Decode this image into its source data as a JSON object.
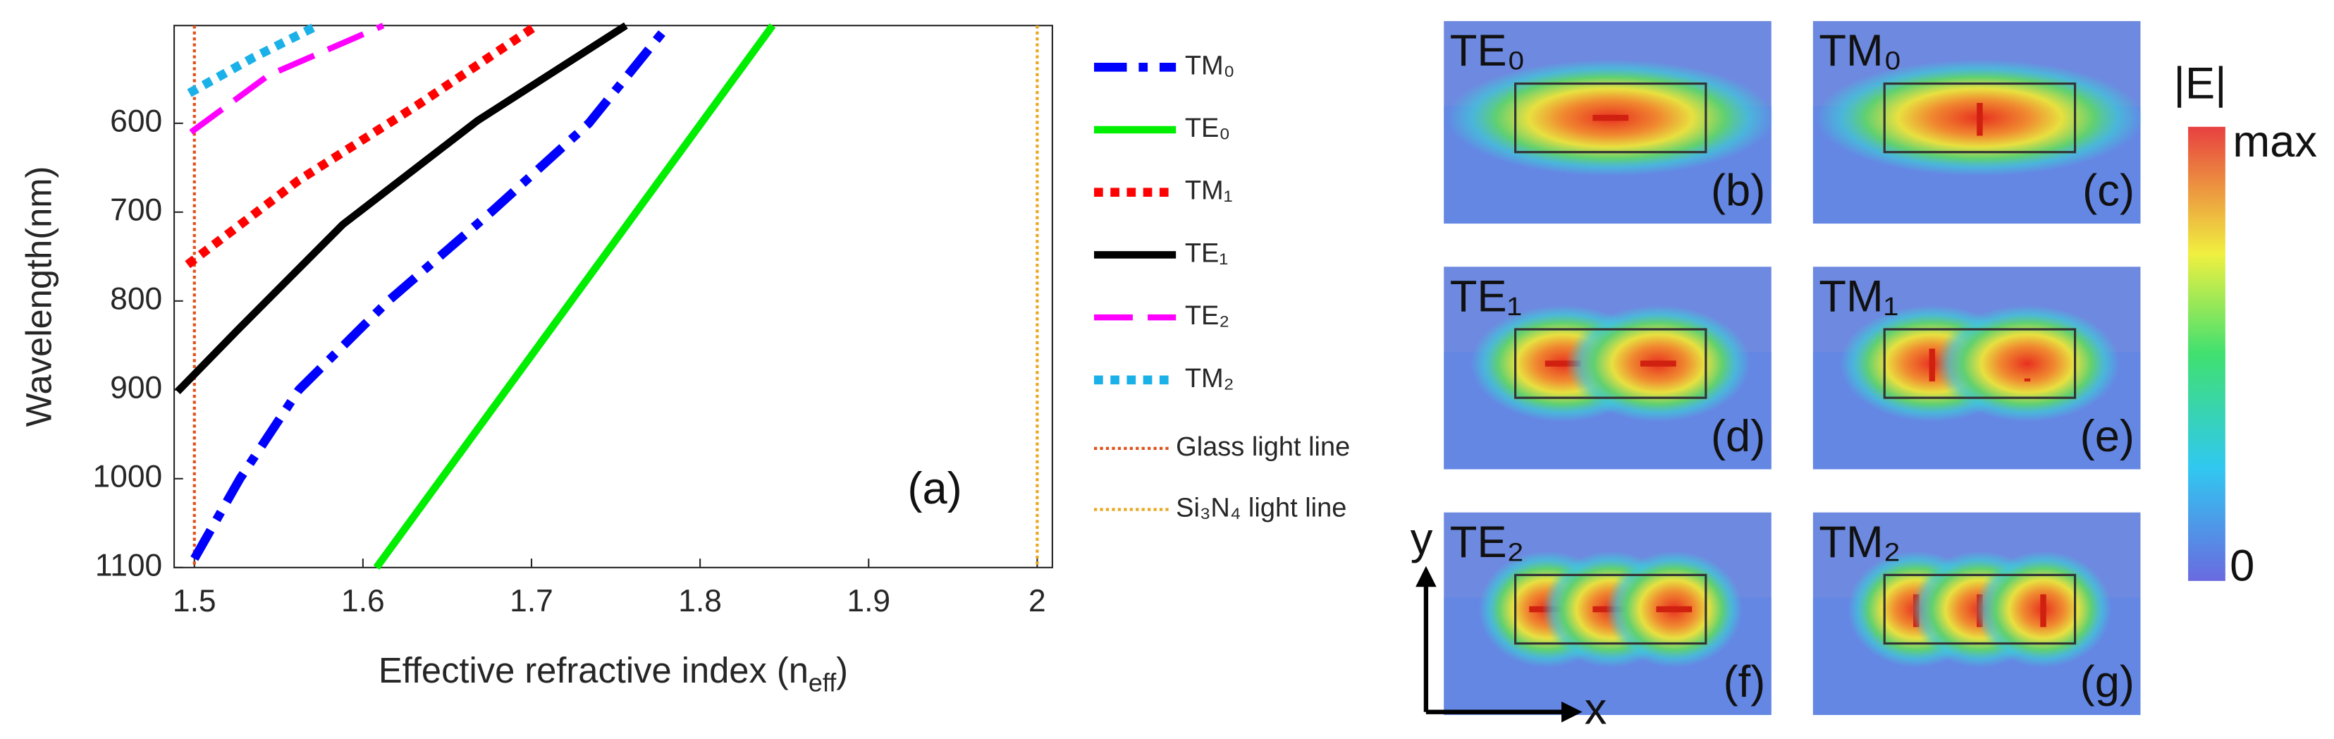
{
  "chart_data": {
    "type": "line",
    "xlabel": "Effective refractive index (n",
    "xlabel_sub": "eff",
    "xlabel_end": ")",
    "ylabel": "Wavelength(nm)",
    "annotation": "(a)",
    "xlim": [
      1.488,
      2.009
    ],
    "ylim": [
      1100,
      490
    ],
    "xticks": [
      1.5,
      1.6,
      1.7,
      1.8,
      1.9,
      2
    ],
    "yticks": [
      600,
      700,
      800,
      900,
      1000,
      1100
    ],
    "series": [
      {
        "name": "TM₀",
        "color": "#0000ff",
        "dash": "dashdot",
        "x": [
          1.5,
          1.527,
          1.562,
          1.615,
          1.676,
          1.734,
          1.781
        ],
        "values": [
          1090,
          1000,
          900,
          800,
          700,
          600,
          490
        ]
      },
      {
        "name": "TE₀",
        "color": "#00ee00",
        "dash": "solid",
        "x": [
          1.608,
          1.843
        ],
        "values": [
          1100,
          490
        ]
      },
      {
        "name": "TM₁",
        "color": "#ff0000",
        "dash": "dotted",
        "x": [
          1.496,
          1.562,
          1.632,
          1.703
        ],
        "values": [
          759,
          664,
          580,
          490
        ]
      },
      {
        "name": "TE₁",
        "color": "#000000",
        "dash": "solid",
        "x": [
          1.49,
          1.526,
          1.588,
          1.668,
          1.756
        ],
        "values": [
          902,
          832,
          714,
          597,
          490
        ]
      },
      {
        "name": "TE₂",
        "color": "#ff00ff",
        "dash": "dashed",
        "x": [
          1.498,
          1.544,
          1.612
        ],
        "values": [
          610,
          546,
          490
        ]
      },
      {
        "name": "TM₂",
        "color": "#1ab0e8",
        "dash": "dotted",
        "x": [
          1.497,
          1.535,
          1.573
        ],
        "values": [
          566,
          526,
          490
        ]
      }
    ],
    "vlines": [
      {
        "name": "Glass light line",
        "x": 1.5,
        "color": "#e0501a"
      },
      {
        "name": "Si₃N₄ light line",
        "x": 2,
        "color": "#e8a820"
      }
    ]
  },
  "panels": [
    {
      "mode": "TE₀",
      "tag": "(b)"
    },
    {
      "mode": "TM₀",
      "tag": "(c)"
    },
    {
      "mode": "TE₁",
      "tag": "(d)"
    },
    {
      "mode": "TM₁",
      "tag": "(e)"
    },
    {
      "mode": "TE₂",
      "tag": "(f)"
    },
    {
      "mode": "TM₂",
      "tag": "(g)"
    }
  ],
  "colorbar": {
    "title": "|E|",
    "max": "max",
    "min": "0"
  },
  "axes_labels": {
    "x": "x",
    "y": "y"
  }
}
